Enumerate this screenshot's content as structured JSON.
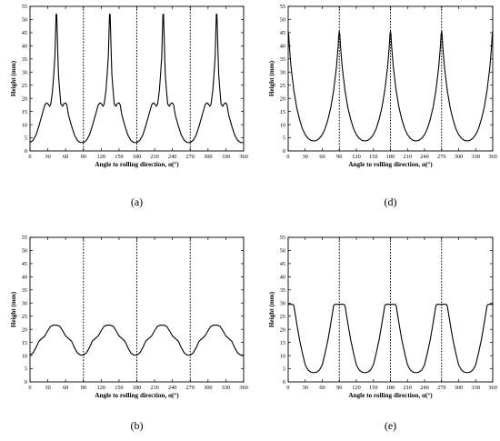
{
  "chart_data": [
    {
      "id": "a",
      "type": "line",
      "panel_label": "(a)",
      "xlabel": "Angle to rolling direction, α(°)",
      "ylabel": "Height (mm)",
      "xlim": [
        0,
        360
      ],
      "ylim": [
        0,
        55
      ],
      "xticks": [
        0,
        30,
        60,
        90,
        120,
        150,
        180,
        210,
        240,
        270,
        300,
        330,
        360
      ],
      "yticks": [
        0,
        5,
        10,
        15,
        20,
        25,
        30,
        35,
        40,
        45,
        50,
        55
      ],
      "vlines": [
        90,
        180,
        270
      ],
      "grid": false,
      "legend": "none",
      "period": 90,
      "series": [
        {
          "x": [
            0,
            5,
            10,
            15,
            20,
            25,
            28,
            30,
            33,
            35,
            38,
            40,
            42,
            43,
            44,
            45,
            46,
            47,
            48,
            50,
            52,
            55,
            57,
            60,
            62,
            65,
            70,
            75,
            80,
            85,
            90
          ],
          "y": [
            3.2,
            4,
            6,
            9.5,
            13.5,
            17.5,
            18.3,
            18,
            17,
            17.8,
            23,
            29,
            36,
            44,
            52,
            52,
            44,
            36,
            29,
            23,
            17.8,
            17,
            18,
            18.3,
            17.5,
            13.5,
            9.5,
            6,
            4,
            3.2,
            3.2
          ]
        }
      ]
    },
    {
      "id": "d",
      "type": "line",
      "panel_label": "(d)",
      "xlabel": "Angle to rolling direction, α(°)",
      "ylabel": "Height (mm)",
      "xlim": [
        0,
        360
      ],
      "ylim": [
        0,
        55
      ],
      "xticks": [
        0,
        30,
        60,
        90,
        120,
        150,
        180,
        210,
        240,
        270,
        300,
        330,
        360
      ],
      "yticks": [
        0,
        5,
        10,
        15,
        20,
        25,
        30,
        35,
        40,
        45,
        50,
        55
      ],
      "vlines": [
        90,
        180,
        270
      ],
      "grid": false,
      "legend": "none",
      "period": 90,
      "series": [
        {
          "x": [
            0,
            1,
            2,
            5,
            10,
            15,
            20,
            25,
            30,
            35,
            40,
            45,
            50,
            55,
            60,
            65,
            70,
            75,
            80,
            85,
            88,
            89,
            90
          ],
          "y": [
            45.5,
            44,
            40,
            32,
            23,
            16.5,
            12,
            8.5,
            6.2,
            4.8,
            4,
            3.8,
            4,
            4.8,
            6.2,
            8.5,
            12,
            16.5,
            23,
            32,
            40,
            44,
            45.5
          ]
        }
      ]
    },
    {
      "id": "b",
      "type": "line",
      "panel_label": "(b)",
      "xlabel": "Angle to rolling direction, α(°)",
      "ylabel": "Height (mm)",
      "xlim": [
        0,
        360
      ],
      "ylim": [
        0,
        55
      ],
      "xticks": [
        0,
        30,
        60,
        90,
        120,
        150,
        180,
        210,
        240,
        270,
        300,
        330,
        360
      ],
      "yticks": [
        0,
        5,
        10,
        15,
        20,
        25,
        30,
        35,
        40,
        45,
        50,
        55
      ],
      "vlines": [
        90,
        180,
        270
      ],
      "grid": false,
      "legend": "none",
      "period": 90,
      "series": [
        {
          "x": [
            0,
            5,
            10,
            15,
            20,
            25,
            30,
            35,
            40,
            45,
            50,
            55,
            60,
            65,
            70,
            75,
            80,
            85,
            90
          ],
          "y": [
            10.2,
            11,
            13,
            15.5,
            16.5,
            17.5,
            19.5,
            21.2,
            21.6,
            21.6,
            21.2,
            19.5,
            17.5,
            16.5,
            15.5,
            13,
            11,
            10.2,
            10.2
          ]
        }
      ]
    },
    {
      "id": "e",
      "type": "line",
      "panel_label": "(e)",
      "xlabel": "Angle to rolling direction, α(°)",
      "ylabel": "Height (mm)",
      "xlim": [
        0,
        360
      ],
      "ylim": [
        0,
        55
      ],
      "xticks": [
        0,
        30,
        60,
        90,
        120,
        150,
        180,
        210,
        240,
        270,
        300,
        330,
        360
      ],
      "yticks": [
        0,
        5,
        10,
        15,
        20,
        25,
        30,
        35,
        40,
        45,
        50,
        55
      ],
      "vlines": [
        90,
        180,
        270
      ],
      "grid": false,
      "legend": "none",
      "period": 90,
      "series": [
        {
          "x": [
            0,
            5,
            8,
            10,
            13,
            16,
            20,
            25,
            30,
            35,
            40,
            45,
            50,
            55,
            60,
            65,
            70,
            74,
            77,
            80,
            82,
            85,
            90
          ],
          "y": [
            29.5,
            29.5,
            29.5,
            29,
            25,
            21,
            16,
            11,
            6.5,
            4.5,
            3.7,
            3.5,
            3.7,
            4.5,
            6.5,
            11,
            16,
            21,
            25,
            29,
            29.5,
            29.5,
            29.5
          ]
        }
      ]
    }
  ]
}
